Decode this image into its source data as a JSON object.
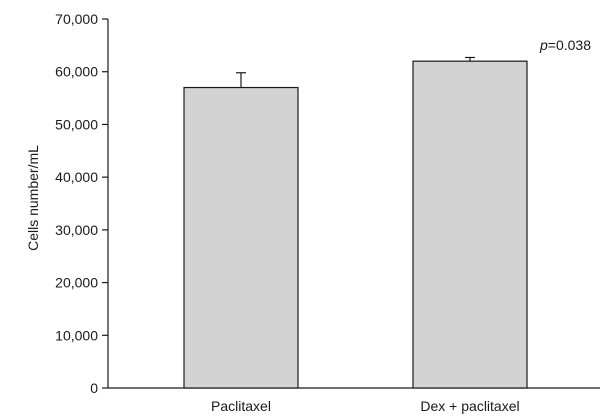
{
  "chart_data": {
    "type": "bar",
    "title": "",
    "xlabel": "",
    "ylabel": "Cells number/mL",
    "ylim": [
      0,
      70000
    ],
    "yticks": [
      0,
      10000,
      20000,
      30000,
      40000,
      50000,
      60000,
      70000
    ],
    "ytick_labels": [
      "0",
      "10,000",
      "20,000",
      "30,000",
      "40,000",
      "50,000",
      "60,000",
      "70,000"
    ],
    "categories": [
      "Paclitaxel",
      "Dex + paclitaxel"
    ],
    "values": [
      57000,
      62000
    ],
    "error_upper": [
      2800,
      700
    ],
    "grid": false,
    "bar_color": "#d3d3d3",
    "annotation": {
      "italic_part": "p",
      "rest": "=0.038"
    }
  }
}
